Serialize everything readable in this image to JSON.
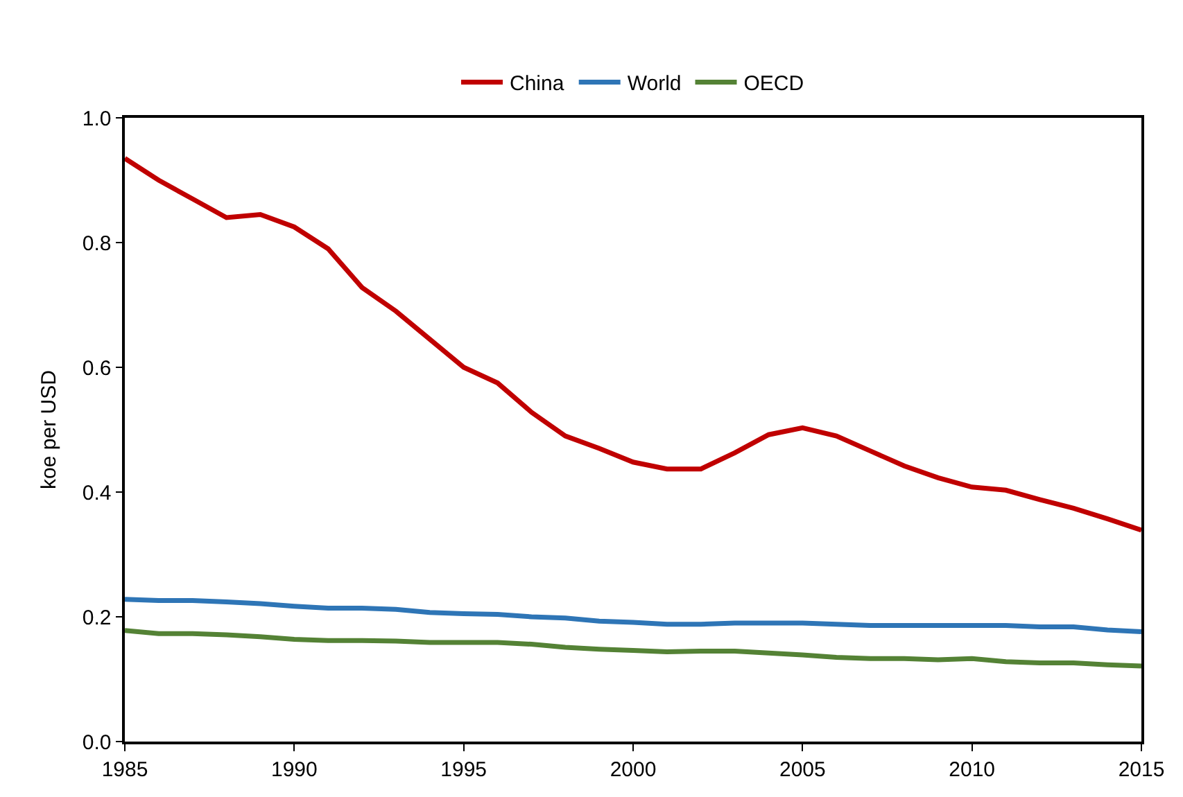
{
  "chart_data": {
    "type": "line",
    "ylabel": "koe per USD",
    "x": [
      1985,
      1986,
      1987,
      1988,
      1989,
      1990,
      1991,
      1992,
      1993,
      1994,
      1995,
      1996,
      1997,
      1998,
      1999,
      2000,
      2001,
      2002,
      2003,
      2004,
      2005,
      2006,
      2007,
      2008,
      2009,
      2010,
      2011,
      2012,
      2013,
      2014,
      2015
    ],
    "series": [
      {
        "name": "China",
        "color": "#c00000",
        "values": [
          0.935,
          0.9,
          0.87,
          0.84,
          0.845,
          0.825,
          0.79,
          0.728,
          0.69,
          0.645,
          0.6,
          0.575,
          0.528,
          0.49,
          0.47,
          0.448,
          0.437,
          0.437,
          0.463,
          0.492,
          0.503,
          0.49,
          0.466,
          0.442,
          0.423,
          0.408,
          0.403,
          0.388,
          0.374,
          0.357,
          0.339
        ]
      },
      {
        "name": "World",
        "color": "#2e75b6",
        "values": [
          0.228,
          0.226,
          0.226,
          0.224,
          0.221,
          0.217,
          0.214,
          0.214,
          0.212,
          0.207,
          0.205,
          0.204,
          0.2,
          0.198,
          0.193,
          0.191,
          0.188,
          0.188,
          0.19,
          0.19,
          0.19,
          0.188,
          0.186,
          0.186,
          0.186,
          0.186,
          0.186,
          0.184,
          0.184,
          0.179,
          0.176
        ]
      },
      {
        "name": "OECD",
        "color": "#548235",
        "values": [
          0.178,
          0.173,
          0.173,
          0.171,
          0.168,
          0.164,
          0.162,
          0.162,
          0.161,
          0.159,
          0.159,
          0.159,
          0.156,
          0.151,
          0.148,
          0.146,
          0.144,
          0.145,
          0.145,
          0.142,
          0.139,
          0.135,
          0.133,
          0.133,
          0.131,
          0.133,
          0.128,
          0.126,
          0.126,
          0.123,
          0.121
        ]
      }
    ],
    "xlim": [
      1985,
      2015
    ],
    "xticks": [
      1985,
      1990,
      1995,
      2000,
      2005,
      2010,
      2015
    ],
    "ylim": [
      0,
      1
    ],
    "yticks": [
      {
        "value": 0,
        "label": "0.0"
      },
      0.2,
      0.4,
      0.6,
      0.8,
      {
        "value": 1,
        "label": "1.0"
      }
    ],
    "legend": "top",
    "marker": "none",
    "line_style": "solid"
  }
}
